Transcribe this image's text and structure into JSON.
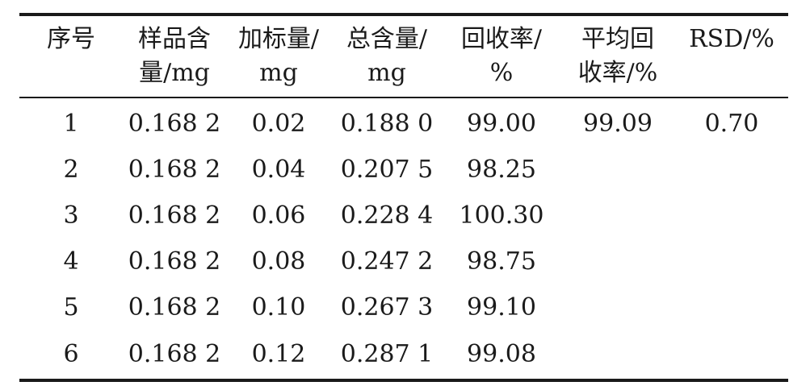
{
  "table": {
    "headers": [
      {
        "line1": "序号",
        "line2": ""
      },
      {
        "line1": "样品含",
        "line2": "量/mg"
      },
      {
        "line1": "加标量/",
        "line2": "mg"
      },
      {
        "line1": "总含量/",
        "line2": "mg"
      },
      {
        "line1": "回收率/",
        "line2": "%"
      },
      {
        "line1": "平均回",
        "line2": "收率/%"
      },
      {
        "line1": "RSD/%",
        "line2": ""
      }
    ],
    "rows": [
      [
        "1",
        "0.168 2",
        "0.02",
        "0.188 0",
        "99.00",
        "99.09",
        "0.70"
      ],
      [
        "2",
        "0.168 2",
        "0.04",
        "0.207 5",
        "98.25",
        "",
        ""
      ],
      [
        "3",
        "0.168 2",
        "0.06",
        "0.228 4",
        "100.30",
        "",
        ""
      ],
      [
        "4",
        "0.168 2",
        "0.08",
        "0.247 2",
        "98.75",
        "",
        ""
      ],
      [
        "5",
        "0.168 2",
        "0.10",
        "0.267 3",
        "99.10",
        "",
        ""
      ],
      [
        "6",
        "0.168 2",
        "0.12",
        "0.287 1",
        "99.08",
        "",
        ""
      ]
    ]
  }
}
